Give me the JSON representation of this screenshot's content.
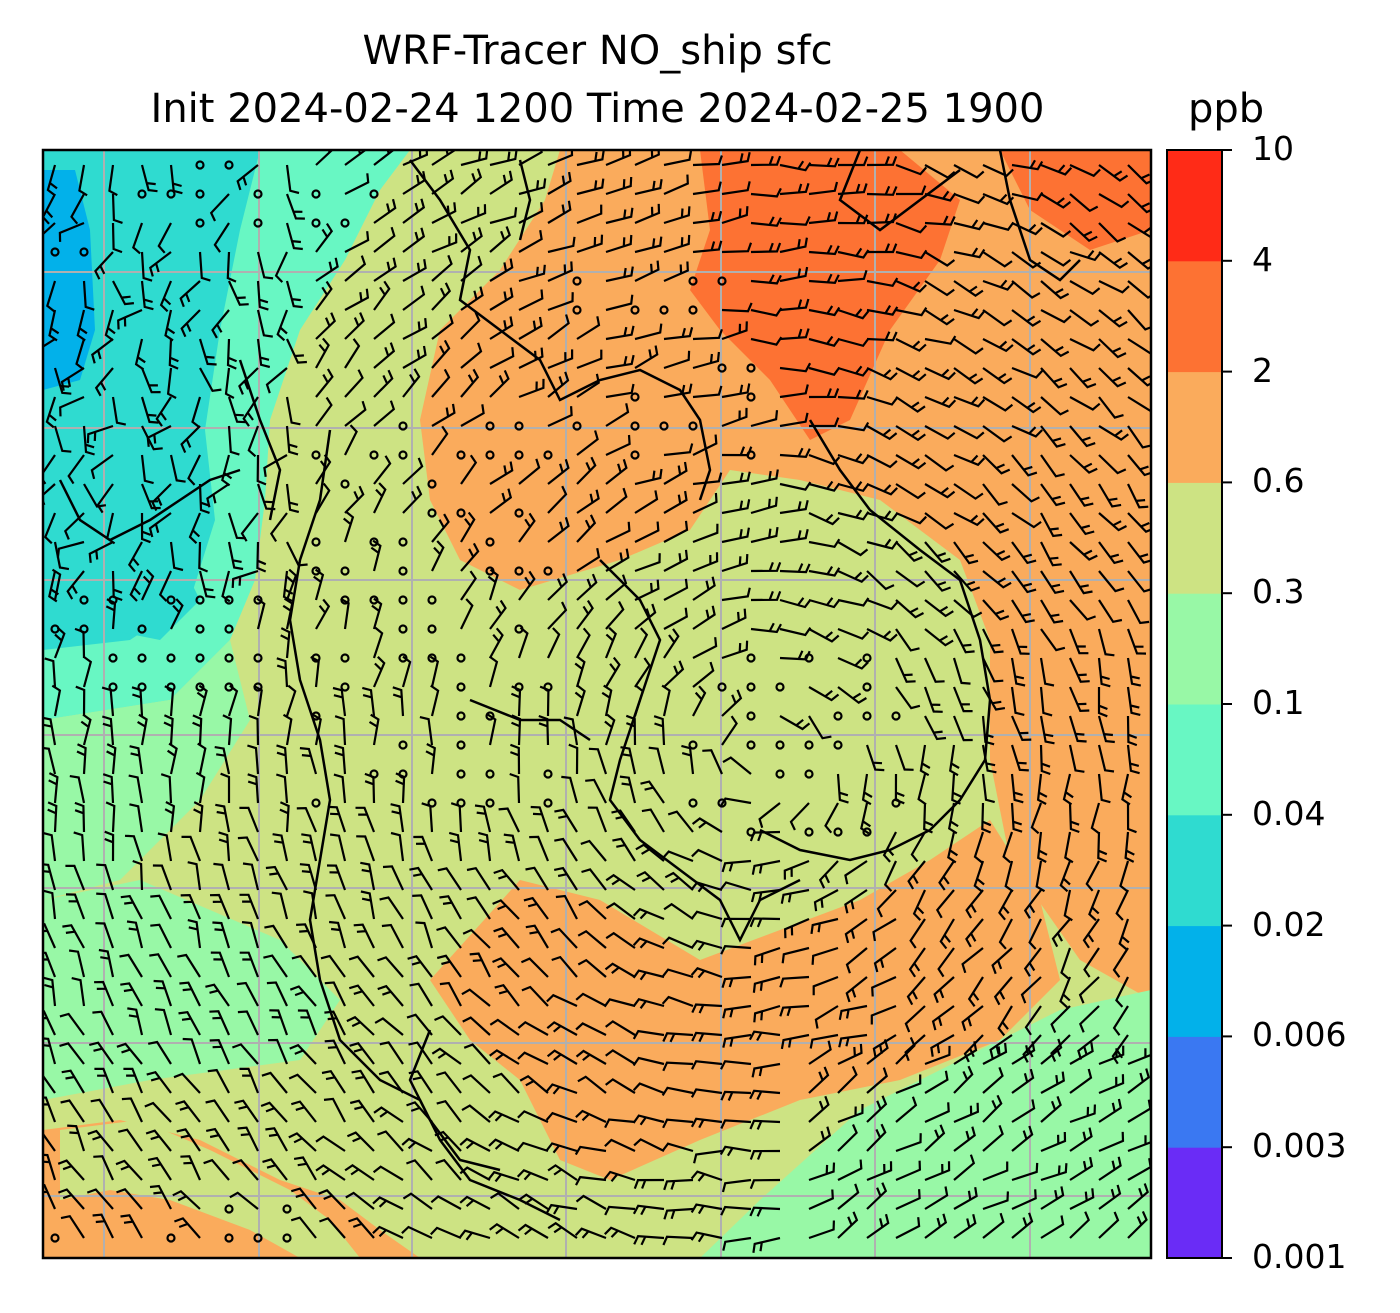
{
  "title": {
    "line1": "WRF-Tracer NO_ship sfc",
    "line2": "Init 2024-02-24 1200 Time 2024-02-25 1900",
    "units": "ppb"
  },
  "colorbar": {
    "levels": [
      "0.001",
      "0.003",
      "0.006",
      "0.02",
      "0.04",
      "0.1",
      "0.3",
      "0.6",
      "2",
      "4",
      "10"
    ],
    "colors": [
      "#6a2cf6",
      "#3a78f2",
      "#02b1ea",
      "#2fdbd0",
      "#68f7c3",
      "#98f8a6",
      "#cde383",
      "#faab5c",
      "#fd7233",
      "#ff2b17"
    ]
  },
  "map": {
    "field": "NO_ship surface concentration",
    "overlays": [
      "wind barbs",
      "calm wind circles",
      "coastlines",
      "lat-lon gridlines"
    ],
    "gridline_color": "#b0b0b0"
  }
}
